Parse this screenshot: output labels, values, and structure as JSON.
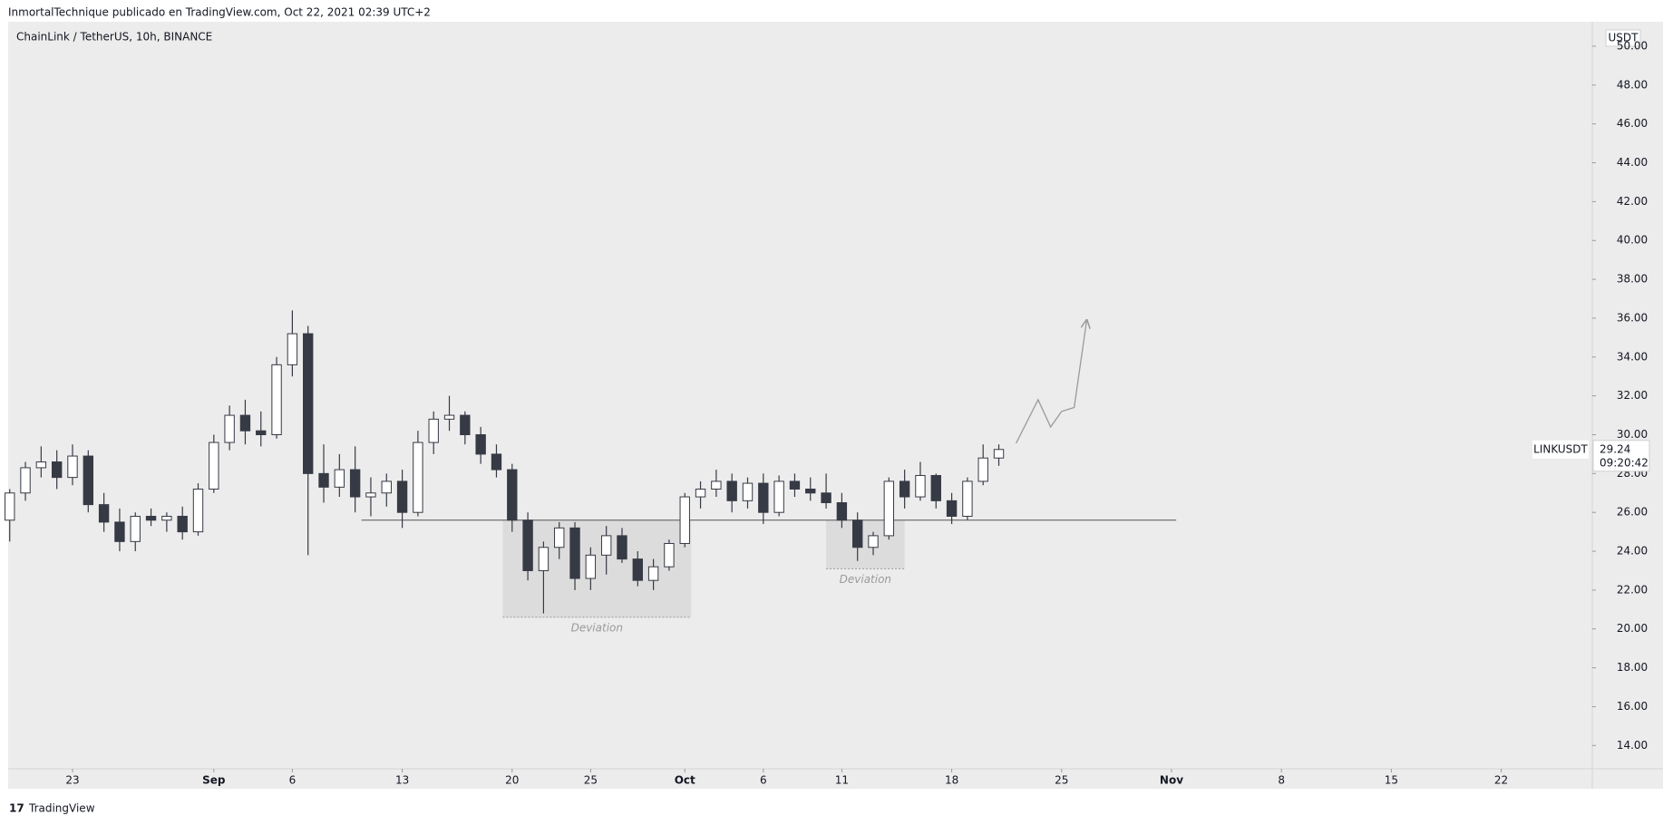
{
  "header": {
    "publisher": "InmortalTechnique publicado en TradingView.com, Oct 22, 2021 02:39 UTC+2"
  },
  "footer": {
    "brand": "TradingView"
  },
  "chart_data": {
    "type": "candlestick",
    "title": "ChainLink / TetherUS, 10h, BINANCE",
    "symbol": "LINKUSDT",
    "currency": "USDT",
    "countdown": "09:20:42",
    "categories": [
      null,
      null,
      null,
      null,
      null,
      null,
      null,
      null,
      null,
      null,
      null,
      null,
      null,
      null,
      null,
      null,
      null,
      null,
      null,
      null,
      null,
      null,
      null,
      null,
      null,
      null,
      null,
      null,
      null,
      null,
      null,
      null,
      null,
      null,
      null,
      null,
      null,
      null,
      null,
      null,
      null,
      null,
      null,
      null,
      null,
      null,
      null,
      null,
      null,
      null,
      null,
      null,
      null,
      null,
      null,
      null,
      null,
      null,
      null,
      null,
      null,
      null,
      null,
      null
    ],
    "open": [
      25.6,
      27.0,
      28.3,
      28.6,
      27.8,
      28.9,
      26.4,
      25.5,
      24.5,
      25.8,
      25.6,
      25.8,
      25.0,
      27.2,
      29.6,
      31.0,
      30.2,
      30.0,
      33.6,
      35.2,
      28.0,
      27.3,
      28.2,
      26.8,
      27.0,
      27.6,
      26.0,
      29.6,
      30.8,
      31.0,
      30.0,
      29.0,
      28.2,
      25.6,
      23.0,
      24.2,
      25.2,
      22.6,
      23.8,
      24.8,
      23.6,
      22.5,
      23.2,
      24.4,
      26.8,
      27.2,
      27.6,
      26.6,
      27.5,
      26.0,
      27.6,
      27.2,
      27.0,
      26.5,
      25.6,
      24.2,
      24.8,
      27.6,
      26.8,
      27.9,
      26.6,
      25.8,
      27.6,
      28.8
    ],
    "high": [
      27.2,
      28.6,
      29.4,
      29.2,
      29.5,
      29.2,
      27.0,
      26.2,
      26.0,
      26.2,
      26.0,
      26.3,
      27.5,
      30.0,
      31.5,
      31.8,
      31.2,
      34.0,
      36.4,
      35.6,
      29.5,
      29.0,
      29.4,
      27.8,
      28.0,
      28.2,
      30.2,
      31.2,
      32.0,
      31.2,
      30.4,
      29.5,
      28.5,
      26.0,
      24.5,
      25.5,
      25.5,
      24.2,
      25.3,
      25.2,
      24.0,
      23.6,
      24.6,
      27.0,
      27.6,
      28.2,
      28.0,
      27.8,
      28.0,
      27.9,
      28.0,
      27.8,
      28.0,
      27.0,
      26.0,
      25.0,
      27.8,
      28.2,
      28.6,
      28.0,
      27.0,
      27.8,
      29.5,
      29.5
    ],
    "low": [
      24.5,
      26.6,
      27.8,
      27.2,
      27.4,
      26.0,
      25.0,
      24.0,
      24.0,
      25.3,
      25.0,
      24.6,
      24.8,
      27.0,
      29.2,
      29.5,
      29.4,
      29.8,
      33.0,
      23.8,
      26.5,
      26.8,
      26.0,
      25.8,
      26.3,
      25.2,
      25.8,
      29.0,
      30.2,
      29.5,
      28.5,
      27.8,
      25.0,
      22.5,
      20.8,
      23.6,
      22.0,
      22.0,
      22.8,
      23.4,
      22.2,
      22.0,
      23.0,
      24.2,
      26.2,
      26.8,
      26.0,
      26.2,
      25.4,
      25.8,
      26.8,
      26.6,
      26.2,
      25.2,
      23.5,
      23.8,
      24.6,
      26.2,
      26.6,
      26.2,
      25.4,
      25.6,
      27.4,
      28.4
    ],
    "close": [
      27.0,
      28.3,
      28.6,
      27.8,
      28.9,
      26.4,
      25.5,
      24.5,
      25.8,
      25.6,
      25.8,
      25.0,
      27.2,
      29.6,
      31.0,
      30.2,
      30.0,
      33.6,
      35.2,
      28.0,
      27.3,
      28.2,
      26.8,
      27.0,
      27.6,
      26.0,
      29.6,
      30.8,
      31.0,
      30.0,
      29.0,
      28.2,
      25.6,
      23.0,
      24.2,
      25.2,
      22.6,
      23.8,
      24.8,
      23.6,
      22.5,
      23.2,
      24.4,
      26.8,
      27.2,
      27.6,
      26.6,
      27.5,
      26.0,
      27.6,
      27.2,
      27.0,
      26.5,
      25.6,
      24.2,
      24.8,
      27.6,
      26.8,
      27.9,
      26.6,
      25.8,
      27.6,
      28.8,
      29.24
    ],
    "up_color": "#ffffff",
    "down_color": "#363a45",
    "edge_color": "#363a45",
    "xlim": [
      -0.1,
      100.8
    ],
    "xticks": [
      {
        "value": 4,
        "label": "23"
      },
      {
        "value": 13,
        "label": "Sep"
      },
      {
        "value": 18,
        "label": "6"
      },
      {
        "value": 25,
        "label": "13"
      },
      {
        "value": 32,
        "label": "20"
      },
      {
        "value": 37,
        "label": "25"
      },
      {
        "value": 43,
        "label": "Oct"
      },
      {
        "value": 48,
        "label": "6"
      },
      {
        "value": 53,
        "label": "11"
      },
      {
        "value": 60,
        "label": "18"
      },
      {
        "value": 67,
        "label": "25"
      },
      {
        "value": 74,
        "label": "Nov"
      },
      {
        "value": 81,
        "label": "8"
      },
      {
        "value": 88,
        "label": "15"
      },
      {
        "value": 95,
        "label": "22"
      }
    ],
    "ylim": [
      12.8,
      51.26
    ],
    "yticks": [
      {
        "value": 14,
        "label": "14.00"
      },
      {
        "value": 16,
        "label": "16.00"
      },
      {
        "value": 18,
        "label": "18.00"
      },
      {
        "value": 20,
        "label": "20.00"
      },
      {
        "value": 22,
        "label": "22.00"
      },
      {
        "value": 24,
        "label": "24.00"
      },
      {
        "value": 26,
        "label": "26.00"
      },
      {
        "value": 28,
        "label": "28.00"
      },
      {
        "value": 30,
        "label": "30.00"
      },
      {
        "value": 32,
        "label": "32.00"
      },
      {
        "value": 34,
        "label": "34.00"
      },
      {
        "value": 36,
        "label": "36.00"
      },
      {
        "value": 38,
        "label": "38.00"
      },
      {
        "value": 40,
        "label": "40.00"
      },
      {
        "value": 42,
        "label": "42.00"
      },
      {
        "value": 44,
        "label": "44.00"
      },
      {
        "value": 46,
        "label": "46.00"
      },
      {
        "value": 48,
        "label": "48.00"
      },
      {
        "value": 50,
        "label": "50.00"
      }
    ],
    "support_line": {
      "y": 25.6,
      "x": [
        22.4,
        74.3
      ]
    },
    "zones": [
      {
        "label": "Deviation",
        "x": [
          31.4,
          43.4
        ],
        "y": [
          20.6,
          25.6
        ]
      },
      {
        "label": "Deviation",
        "x": [
          52.0,
          57.0
        ],
        "y": [
          23.1,
          25.6
        ]
      }
    ],
    "projection": {
      "x": [
        64.1,
        65.5,
        66.3,
        67.0,
        67.8,
        68.6
      ],
      "y": [
        29.56,
        31.8,
        30.4,
        31.2,
        31.4,
        35.9
      ]
    }
  }
}
